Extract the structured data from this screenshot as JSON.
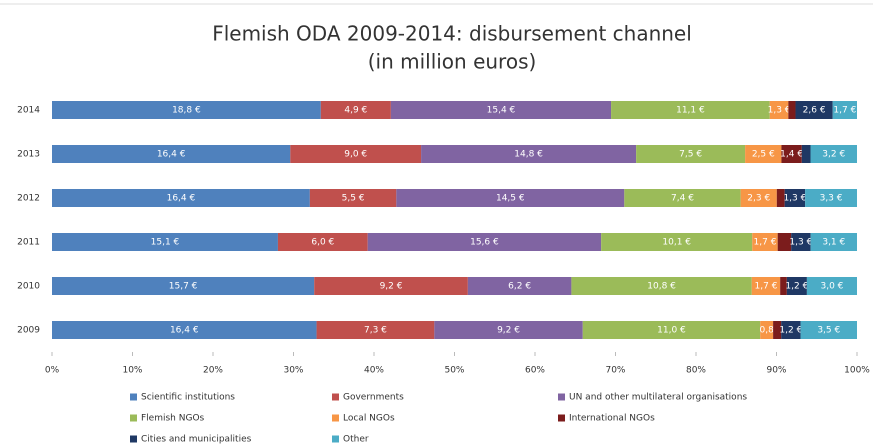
{
  "chart_data": {
    "type": "bar",
    "orientation": "horizontal",
    "stacking": "percent",
    "title": "Flemish ODA 2009-2014: disbursement channel",
    "subtitle": "(in million euros)",
    "categories": [
      "2014",
      "2013",
      "2012",
      "2011",
      "2010",
      "2009"
    ],
    "xlim": [
      0,
      100
    ],
    "xticks": [
      {
        "value": 0,
        "label": "0%"
      },
      {
        "value": 10,
        "label": "10%"
      },
      {
        "value": 20,
        "label": "20%"
      },
      {
        "value": 30,
        "label": "30%"
      },
      {
        "value": 40,
        "label": "40%"
      },
      {
        "value": 50,
        "label": "50%"
      },
      {
        "value": 60,
        "label": "60%"
      },
      {
        "value": 70,
        "label": "70%"
      },
      {
        "value": 80,
        "label": "80%"
      },
      {
        "value": 90,
        "label": "90%"
      },
      {
        "value": 100,
        "label": "100%"
      }
    ],
    "series": [
      {
        "name": "Scientific institutions",
        "color": "#4f81bd",
        "values": [
          18.8,
          16.4,
          16.4,
          15.1,
          15.7,
          16.4
        ],
        "value_labels": [
          "18,8 €",
          "16,4 €",
          "16,4 €",
          "15,1 €",
          "15,7 €",
          "16,4 €"
        ]
      },
      {
        "name": "Governments",
        "color": "#c0504d",
        "values": [
          4.9,
          9.0,
          5.5,
          6.0,
          9.2,
          7.3
        ],
        "value_labels": [
          "4,9 €",
          "9,0 €",
          "5,5 €",
          "6,0 €",
          "9,2 €",
          "7,3 €"
        ]
      },
      {
        "name": "UN and other multilateral organisations",
        "color": "#8064a2",
        "values": [
          15.4,
          14.8,
          14.5,
          15.6,
          6.2,
          9.2
        ],
        "value_labels": [
          "15,4 €",
          "14,8 €",
          "14,5 €",
          "15,6 €",
          "6,2 €",
          "9,2 €"
        ]
      },
      {
        "name": "Flemish NGOs",
        "color": "#9bbb59",
        "values": [
          11.1,
          7.5,
          7.4,
          10.1,
          10.8,
          11.0
        ],
        "value_labels": [
          "11,1 €",
          "7,5 €",
          "7,4 €",
          "10,1 €",
          "10,8 €",
          "11,0 €"
        ]
      },
      {
        "name": "Local NGOs",
        "color": "#f79646",
        "values": [
          1.3,
          2.5,
          2.3,
          1.7,
          1.7,
          0.8
        ],
        "value_labels": [
          "1,3 €",
          "2,5 €",
          "2,3 €",
          "1,7 €",
          "1,7 €",
          "0,8"
        ]
      },
      {
        "name": "International NGOs",
        "color": "#7b1c1c",
        "values": [
          0.5,
          1.4,
          0.5,
          0.9,
          0.4,
          0.5
        ],
        "value_labels": [
          null,
          "1,4 €",
          null,
          null,
          null,
          null
        ]
      },
      {
        "name": "Cities and municipalities",
        "color": "#1f3864",
        "values": [
          2.6,
          0.6,
          1.3,
          1.3,
          1.2,
          1.2
        ],
        "value_labels": [
          "2,6 €",
          null,
          "1,3 €",
          "1,3 €",
          "1,2 €",
          "1,2 €"
        ]
      },
      {
        "name": "Other",
        "color": "#4bacc6",
        "values": [
          1.7,
          3.2,
          3.3,
          3.1,
          3.0,
          3.5
        ],
        "value_labels": [
          "1,7 €",
          "3,2 €",
          "3,3 €",
          "3,1 €",
          "3,0 €",
          "3,5 €"
        ]
      }
    ]
  }
}
